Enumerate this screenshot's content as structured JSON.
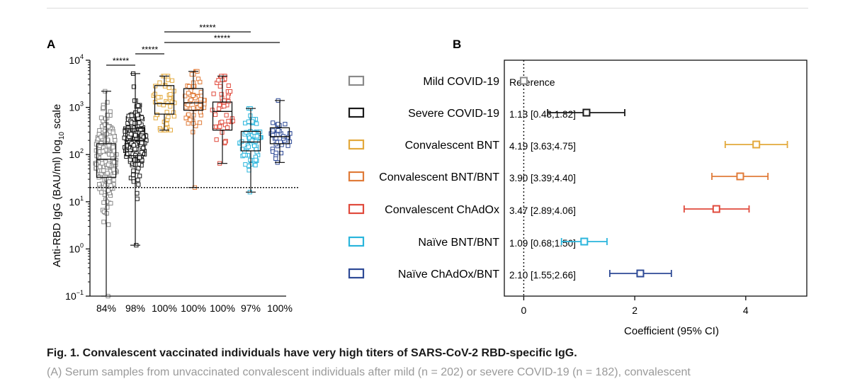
{
  "panel_a": {
    "label": "A",
    "ylabel": "Anti-RBD IgG (BAU/ml) log",
    "ylabel_sub": "10",
    "ylabel_suffix": " scale",
    "y_ticks": [
      {
        "base": "10",
        "exp": "−1"
      },
      {
        "base": "10",
        "exp": "0"
      },
      {
        "base": "10",
        "exp": "1"
      },
      {
        "base": "10",
        "exp": "2"
      },
      {
        "base": "10",
        "exp": "3"
      },
      {
        "base": "10",
        "exp": "4"
      }
    ],
    "threshold_line_value": 20
  },
  "panel_b": {
    "label": "B",
    "xlabel": "Coefficient (95% CI)",
    "x_ticks": [
      "0",
      "2",
      "4"
    ]
  },
  "chart_data": [
    {
      "type": "box",
      "title": "A",
      "ylabel": "Anti-RBD IgG (BAU/ml) log10 scale",
      "yscale": "log",
      "ylim": [
        0.1,
        10000
      ],
      "categories": [
        "Mild COVID-19",
        "Severe COVID-19",
        "Convalescent BNT",
        "Convalescent BNT/BNT",
        "Convalescent ChAdOx",
        "Naïve BNT/BNT",
        "Naïve ChAdOx/BNT"
      ],
      "seropositive_labels": [
        "84%",
        "98%",
        "100%",
        "100%",
        "100%",
        "97%",
        "100%"
      ],
      "colors": [
        "#8a8a8a",
        "#1a1a1a",
        "#e3a93c",
        "#e07b39",
        "#e04a3c",
        "#2ab5dc",
        "#2e4a96"
      ],
      "boxes": [
        {
          "min": 0.1,
          "q1": 33,
          "median": 80,
          "q3": 170,
          "max": 2200
        },
        {
          "min": 1.2,
          "q1": 95,
          "median": 200,
          "q3": 360,
          "max": 5200
        },
        {
          "min": 330,
          "q1": 720,
          "median": 1200,
          "q3": 2900,
          "max": 4600
        },
        {
          "min": 20,
          "q1": 870,
          "median": 1250,
          "q3": 2500,
          "max": 5800
        },
        {
          "min": 65,
          "q1": 330,
          "median": 820,
          "q3": 1300,
          "max": 4600
        },
        {
          "min": 16,
          "q1": 120,
          "median": 185,
          "q3": 310,
          "max": 950
        },
        {
          "min": 68,
          "q1": 170,
          "median": 240,
          "q3": 370,
          "max": 1400
        }
      ],
      "point_counts": [
        202,
        182,
        48,
        60,
        52,
        70,
        40
      ],
      "threshold": 20,
      "significance": [
        {
          "from": 0,
          "to": 1,
          "label": "*****"
        },
        {
          "from": 1,
          "to": 2,
          "label": "*****"
        },
        {
          "from": 2,
          "to": 5,
          "label": "*****"
        },
        {
          "from": 2,
          "to": 6,
          "label": "*****"
        }
      ]
    },
    {
      "type": "forest",
      "title": "B",
      "xlabel": "Coefficient (95% CI)",
      "xlim": [
        -0.35,
        5.1
      ],
      "x_ticks": [
        0,
        2,
        4
      ],
      "reference_line": 0,
      "rows": [
        {
          "label": "Mild COVID-19",
          "estimate_text": "Reference",
          "estimate": 0,
          "low": null,
          "high": null,
          "color": "#8a8a8a"
        },
        {
          "label": "Severe COVID-19",
          "estimate_text": "1.13 [0.43;1.82]",
          "estimate": 1.13,
          "low": 0.43,
          "high": 1.82,
          "color": "#1a1a1a"
        },
        {
          "label": "Convalescent BNT",
          "estimate_text": "4.19 [3.63;4.75]",
          "estimate": 4.19,
          "low": 3.63,
          "high": 4.75,
          "color": "#e3a93c"
        },
        {
          "label": "Convalescent BNT/BNT",
          "estimate_text": "3.90 [3.39;4.40]",
          "estimate": 3.9,
          "low": 3.39,
          "high": 4.4,
          "color": "#e07b39"
        },
        {
          "label": "Convalescent ChAdOx",
          "estimate_text": "3.47 [2.89;4.06]",
          "estimate": 3.47,
          "low": 2.89,
          "high": 4.06,
          "color": "#e04a3c"
        },
        {
          "label": "Naïve BNT/BNT",
          "estimate_text": "1.09 [0.68;1.50]",
          "estimate": 1.09,
          "low": 0.68,
          "high": 1.5,
          "color": "#2ab5dc"
        },
        {
          "label": "Naïve ChAdOx/BNT",
          "estimate_text": "2.10 [1.55;2.66]",
          "estimate": 2.1,
          "low": 1.55,
          "high": 2.66,
          "color": "#2e4a96"
        }
      ]
    }
  ],
  "caption": {
    "title": "Fig. 1. Convalescent vaccinated individuals have very high titers of SARS-CoV-2 RBD-specific IgG.",
    "body": "(A) Serum samples from unvaccinated convalescent individuals after mild (n = 202) or severe COVID-19 (n = 182), convalescent"
  }
}
